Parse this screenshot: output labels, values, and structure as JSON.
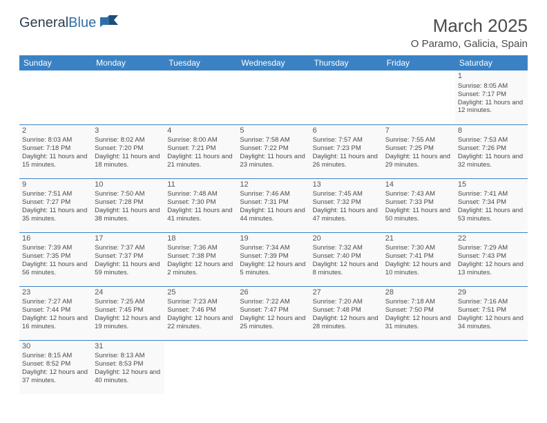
{
  "brand": {
    "part1": "General",
    "part2": "Blue"
  },
  "title": "March 2025",
  "location": "O Paramo, Galicia, Spain",
  "colors": {
    "header_bg": "#3b82c4",
    "header_text": "#ffffff",
    "cell_border": "#3b82c4",
    "cell_bg": "#f9f9f9",
    "text": "#4a4a4a"
  },
  "day_headers": [
    "Sunday",
    "Monday",
    "Tuesday",
    "Wednesday",
    "Thursday",
    "Friday",
    "Saturday"
  ],
  "weeks": [
    [
      null,
      null,
      null,
      null,
      null,
      null,
      {
        "n": "1",
        "sunrise": "8:05 AM",
        "sunset": "7:17 PM",
        "daylight": "11 hours and 12 minutes."
      }
    ],
    [
      {
        "n": "2",
        "sunrise": "8:03 AM",
        "sunset": "7:18 PM",
        "daylight": "11 hours and 15 minutes."
      },
      {
        "n": "3",
        "sunrise": "8:02 AM",
        "sunset": "7:20 PM",
        "daylight": "11 hours and 18 minutes."
      },
      {
        "n": "4",
        "sunrise": "8:00 AM",
        "sunset": "7:21 PM",
        "daylight": "11 hours and 21 minutes."
      },
      {
        "n": "5",
        "sunrise": "7:58 AM",
        "sunset": "7:22 PM",
        "daylight": "11 hours and 23 minutes."
      },
      {
        "n": "6",
        "sunrise": "7:57 AM",
        "sunset": "7:23 PM",
        "daylight": "11 hours and 26 minutes."
      },
      {
        "n": "7",
        "sunrise": "7:55 AM",
        "sunset": "7:25 PM",
        "daylight": "11 hours and 29 minutes."
      },
      {
        "n": "8",
        "sunrise": "7:53 AM",
        "sunset": "7:26 PM",
        "daylight": "11 hours and 32 minutes."
      }
    ],
    [
      {
        "n": "9",
        "sunrise": "7:51 AM",
        "sunset": "7:27 PM",
        "daylight": "11 hours and 35 minutes."
      },
      {
        "n": "10",
        "sunrise": "7:50 AM",
        "sunset": "7:28 PM",
        "daylight": "11 hours and 38 minutes."
      },
      {
        "n": "11",
        "sunrise": "7:48 AM",
        "sunset": "7:30 PM",
        "daylight": "11 hours and 41 minutes."
      },
      {
        "n": "12",
        "sunrise": "7:46 AM",
        "sunset": "7:31 PM",
        "daylight": "11 hours and 44 minutes."
      },
      {
        "n": "13",
        "sunrise": "7:45 AM",
        "sunset": "7:32 PM",
        "daylight": "11 hours and 47 minutes."
      },
      {
        "n": "14",
        "sunrise": "7:43 AM",
        "sunset": "7:33 PM",
        "daylight": "11 hours and 50 minutes."
      },
      {
        "n": "15",
        "sunrise": "7:41 AM",
        "sunset": "7:34 PM",
        "daylight": "11 hours and 53 minutes."
      }
    ],
    [
      {
        "n": "16",
        "sunrise": "7:39 AM",
        "sunset": "7:35 PM",
        "daylight": "11 hours and 56 minutes."
      },
      {
        "n": "17",
        "sunrise": "7:37 AM",
        "sunset": "7:37 PM",
        "daylight": "11 hours and 59 minutes."
      },
      {
        "n": "18",
        "sunrise": "7:36 AM",
        "sunset": "7:38 PM",
        "daylight": "12 hours and 2 minutes."
      },
      {
        "n": "19",
        "sunrise": "7:34 AM",
        "sunset": "7:39 PM",
        "daylight": "12 hours and 5 minutes."
      },
      {
        "n": "20",
        "sunrise": "7:32 AM",
        "sunset": "7:40 PM",
        "daylight": "12 hours and 8 minutes."
      },
      {
        "n": "21",
        "sunrise": "7:30 AM",
        "sunset": "7:41 PM",
        "daylight": "12 hours and 10 minutes."
      },
      {
        "n": "22",
        "sunrise": "7:29 AM",
        "sunset": "7:43 PM",
        "daylight": "12 hours and 13 minutes."
      }
    ],
    [
      {
        "n": "23",
        "sunrise": "7:27 AM",
        "sunset": "7:44 PM",
        "daylight": "12 hours and 16 minutes."
      },
      {
        "n": "24",
        "sunrise": "7:25 AM",
        "sunset": "7:45 PM",
        "daylight": "12 hours and 19 minutes."
      },
      {
        "n": "25",
        "sunrise": "7:23 AM",
        "sunset": "7:46 PM",
        "daylight": "12 hours and 22 minutes."
      },
      {
        "n": "26",
        "sunrise": "7:22 AM",
        "sunset": "7:47 PM",
        "daylight": "12 hours and 25 minutes."
      },
      {
        "n": "27",
        "sunrise": "7:20 AM",
        "sunset": "7:48 PM",
        "daylight": "12 hours and 28 minutes."
      },
      {
        "n": "28",
        "sunrise": "7:18 AM",
        "sunset": "7:50 PM",
        "daylight": "12 hours and 31 minutes."
      },
      {
        "n": "29",
        "sunrise": "7:16 AM",
        "sunset": "7:51 PM",
        "daylight": "12 hours and 34 minutes."
      }
    ],
    [
      {
        "n": "30",
        "sunrise": "8:15 AM",
        "sunset": "8:52 PM",
        "daylight": "12 hours and 37 minutes."
      },
      {
        "n": "31",
        "sunrise": "8:13 AM",
        "sunset": "8:53 PM",
        "daylight": "12 hours and 40 minutes."
      },
      null,
      null,
      null,
      null,
      null
    ]
  ],
  "labels": {
    "sunrise": "Sunrise:",
    "sunset": "Sunset:",
    "daylight": "Daylight:"
  }
}
